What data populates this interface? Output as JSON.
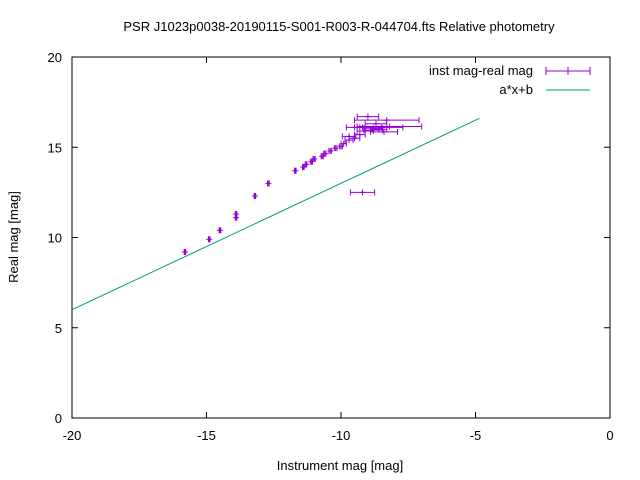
{
  "chart_data": {
    "type": "scatter",
    "title": "PSR J1023p0038-20190115-S001-R003-R-044704.fts Relative photometry",
    "xlabel": "Instrument mag [mag]",
    "ylabel": "Real mag [mag]",
    "xlim": [
      -20,
      0
    ],
    "ylim": [
      0,
      20
    ],
    "xticks": [
      -20,
      -15,
      -10,
      -5,
      0
    ],
    "yticks": [
      0,
      5,
      10,
      15,
      20
    ],
    "xtick_labels": [
      "-20",
      "-15",
      "-10",
      "-5",
      "0"
    ],
    "ytick_labels": [
      "0",
      "5",
      "10",
      "15",
      "20"
    ],
    "grid": false,
    "legend_position": "top-right",
    "colors": {
      "points": "#9400d3",
      "fit": "#009e73"
    },
    "series": [
      {
        "name": "inst mag-real mag",
        "kind": "points-with-x-errorbars",
        "points": [
          {
            "x": -15.8,
            "y": 9.2,
            "xerr": 0.03
          },
          {
            "x": -14.9,
            "y": 9.9,
            "xerr": 0.03
          },
          {
            "x": -14.5,
            "y": 10.4,
            "xerr": 0.03
          },
          {
            "x": -13.9,
            "y": 11.1,
            "xerr": 0.03
          },
          {
            "x": -13.9,
            "y": 11.3,
            "xerr": 0.03
          },
          {
            "x": -13.2,
            "y": 12.3,
            "xerr": 0.03
          },
          {
            "x": -12.7,
            "y": 13.0,
            "xerr": 0.03
          },
          {
            "x": -11.7,
            "y": 13.7,
            "xerr": 0.03
          },
          {
            "x": -11.4,
            "y": 13.9,
            "xerr": 0.03
          },
          {
            "x": -11.3,
            "y": 14.05,
            "xerr": 0.03
          },
          {
            "x": -11.1,
            "y": 14.2,
            "xerr": 0.04
          },
          {
            "x": -11.0,
            "y": 14.35,
            "xerr": 0.04
          },
          {
            "x": -10.7,
            "y": 14.5,
            "xerr": 0.04
          },
          {
            "x": -10.6,
            "y": 14.65,
            "xerr": 0.04
          },
          {
            "x": -10.4,
            "y": 14.8,
            "xerr": 0.05
          },
          {
            "x": -10.2,
            "y": 14.95,
            "xerr": 0.05
          },
          {
            "x": -10.0,
            "y": 15.05,
            "xerr": 0.05
          },
          {
            "x": -9.9,
            "y": 15.2,
            "xerr": 0.1
          },
          {
            "x": -9.7,
            "y": 15.4,
            "xerr": 0.15
          },
          {
            "x": -9.5,
            "y": 15.5,
            "xerr": 0.2
          },
          {
            "x": -9.3,
            "y": 15.7,
            "xerr": 0.2
          },
          {
            "x": -9.1,
            "y": 15.9,
            "xerr": 0.3
          },
          {
            "x": -9.2,
            "y": 12.5,
            "xerr": 0.45
          },
          {
            "x": -9.0,
            "y": 16.7,
            "xerr": 0.4
          },
          {
            "x": -8.8,
            "y": 16.05,
            "xerr": 0.35
          },
          {
            "x": -8.7,
            "y": 16.3,
            "xerr": 0.4
          },
          {
            "x": -8.6,
            "y": 16.0,
            "xerr": 0.3
          },
          {
            "x": -8.5,
            "y": 16.1,
            "xerr": 0.8
          },
          {
            "x": -8.4,
            "y": 15.85,
            "xerr": 0.5
          },
          {
            "x": -8.3,
            "y": 16.5,
            "xerr": 1.2
          },
          {
            "x": -8.8,
            "y": 15.95,
            "xerr": 0.35
          },
          {
            "x": -8.2,
            "y": 16.15,
            "xerr": 1.2
          },
          {
            "x": -9.5,
            "y": 16.1,
            "xerr": 0.3
          },
          {
            "x": -9.7,
            "y": 15.6,
            "xerr": 0.25
          }
        ]
      },
      {
        "name": "a*x+b",
        "kind": "line",
        "slope": 0.7,
        "intercept": 20.0,
        "x_range": [
          -20,
          -4.85
        ]
      }
    ]
  }
}
